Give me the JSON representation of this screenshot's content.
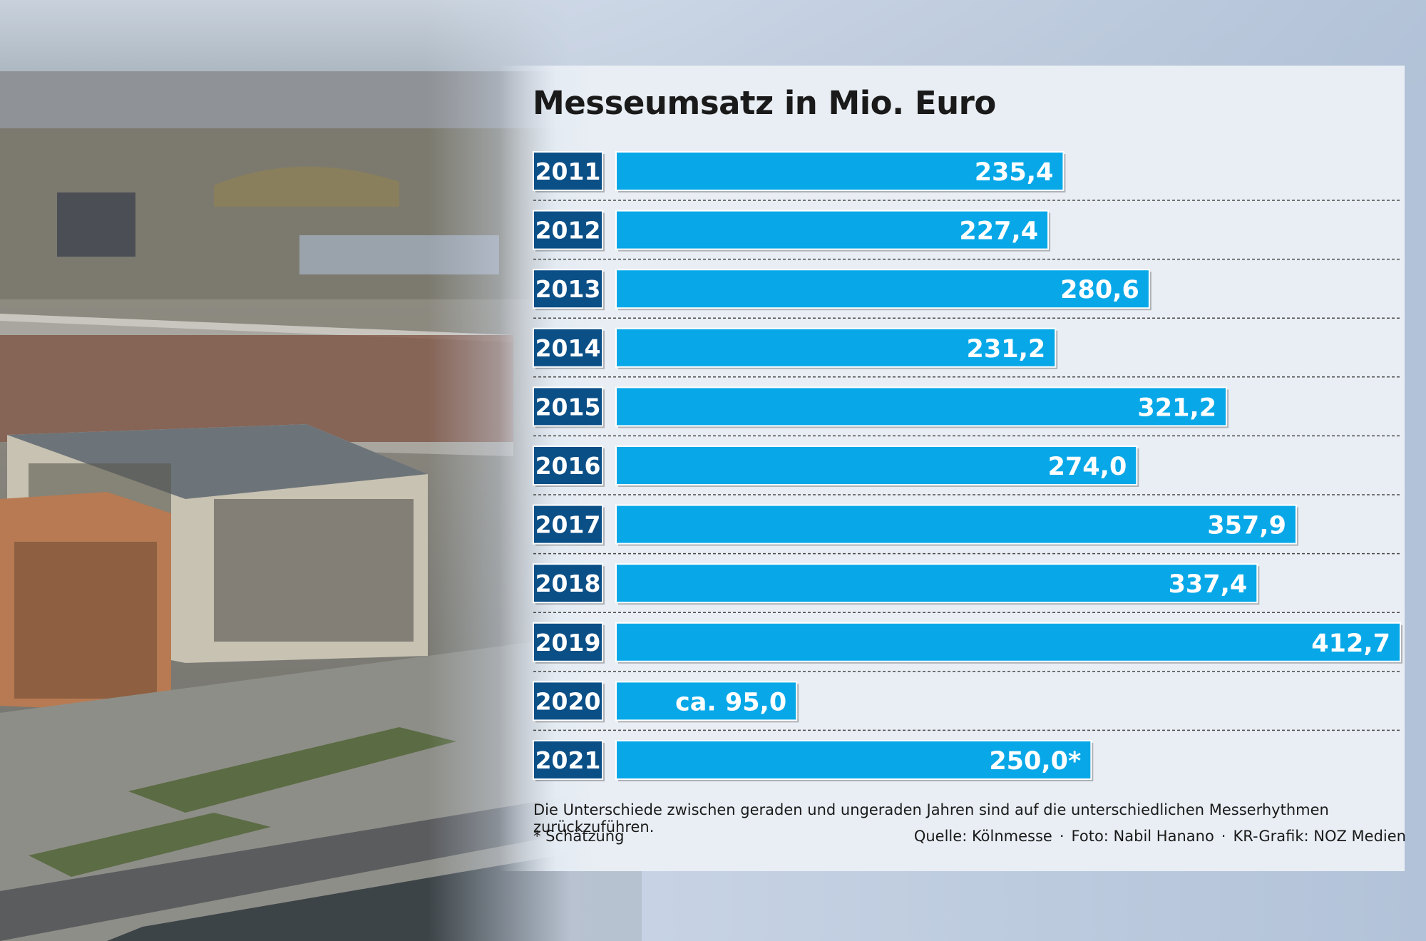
{
  "colors": {
    "bar": "#08a8e8",
    "year_box": "#0b4f87",
    "panel": "#e9eef4",
    "text": "#1a1a1a"
  },
  "title": "Messeumsatz in Mio. Euro",
  "footnote": "Die Unterschiede zwischen geraden und ungeraden Jahren sind auf die unterschiedlichen Messerhythmen zurückzuführen.",
  "estimate_note": "* Schätzung",
  "credits": {
    "source": "Quelle: Kölnmesse",
    "photo": "Foto: Nabil Hanano",
    "graphic": "KR-Grafik: NOZ Medien"
  },
  "chart_data": {
    "type": "bar",
    "orientation": "horizontal",
    "title": "Messeumsatz in Mio. Euro",
    "categories": [
      "2011",
      "2012",
      "2013",
      "2014",
      "2015",
      "2016",
      "2017",
      "2018",
      "2019",
      "2020",
      "2021"
    ],
    "values": [
      235.4,
      227.4,
      280.6,
      231.2,
      321.2,
      274.0,
      357.9,
      337.4,
      412.7,
      95.0,
      250.0
    ],
    "value_labels": [
      "235,4",
      "227,4",
      "280,6",
      "231,2",
      "321,2",
      "274,0",
      "357,9",
      "337,4",
      "412,7",
      "ca. 95,0",
      "250,0*"
    ],
    "xlim": [
      0,
      412.7
    ],
    "grid": false
  }
}
